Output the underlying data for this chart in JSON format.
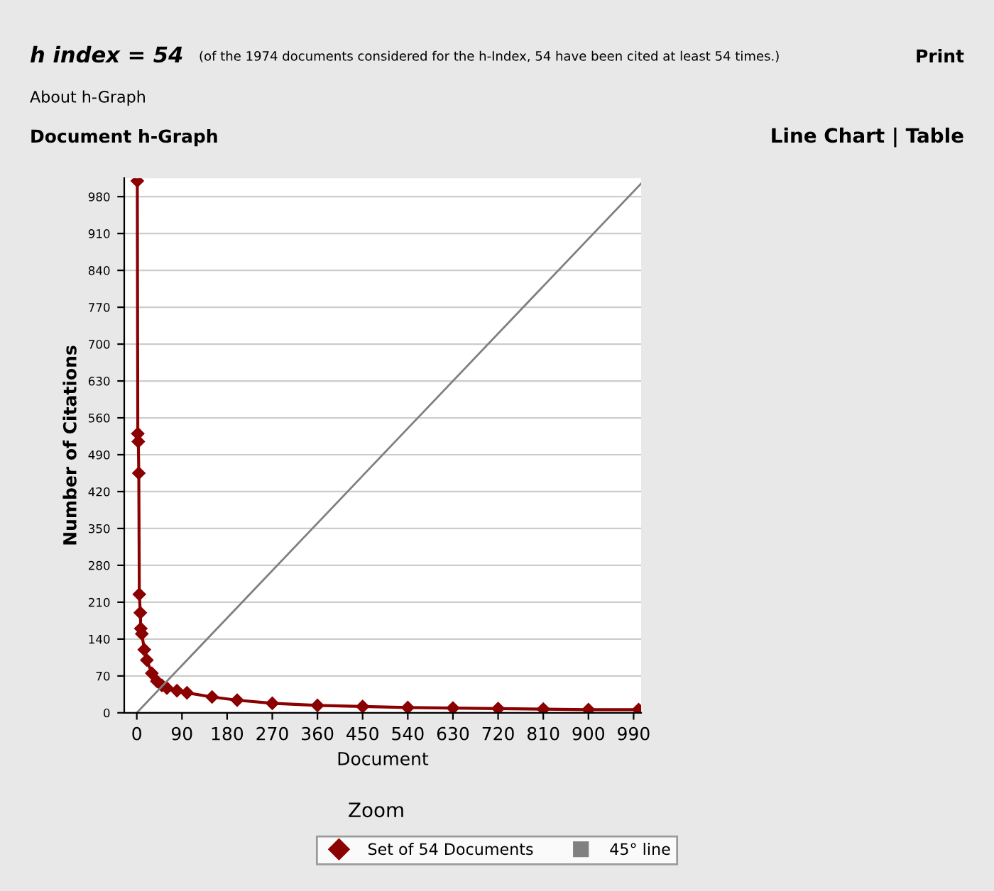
{
  "chart_data": {
    "type": "line",
    "title": "h index = 54",
    "subtitle": "(of the 1974 documents considered for the h-Index, 54 have been cited at least 54 times.)",
    "annotations": [
      "Print",
      "About h-Graph",
      "Document h-Graph",
      "Line Chart | Table",
      "Zoom"
    ],
    "xlabel": "Document",
    "ylabel": "Number of Citations",
    "xlim": [
      -25,
      1005
    ],
    "ylim": [
      0,
      1015
    ],
    "xticks": [
      0,
      90,
      180,
      270,
      360,
      450,
      540,
      630,
      720,
      810,
      900,
      990
    ],
    "yticks": [
      0,
      70,
      140,
      210,
      280,
      350,
      420,
      490,
      560,
      630,
      700,
      770,
      840,
      910,
      980
    ],
    "grid": "y",
    "legend": "bottom",
    "series": [
      {
        "name": "Set of 54 Documents",
        "color": "#8b0000",
        "marker": "diamond",
        "x": [
          1,
          2,
          3,
          4,
          5,
          7,
          8,
          10,
          15,
          20,
          30,
          40,
          50,
          60,
          80,
          100,
          150,
          200,
          270,
          360,
          450,
          540,
          630,
          720,
          810,
          900,
          1000
        ],
        "values": [
          1010,
          530,
          515,
          455,
          225,
          190,
          160,
          150,
          120,
          100,
          75,
          60,
          52,
          47,
          42,
          38,
          30,
          24,
          18,
          14,
          12,
          10,
          9,
          8,
          7,
          6,
          6
        ]
      },
      {
        "name": "45° line",
        "color": "#808080",
        "marker": "none",
        "x": [
          0,
          1005
        ],
        "values": [
          0,
          1005
        ]
      }
    ]
  }
}
